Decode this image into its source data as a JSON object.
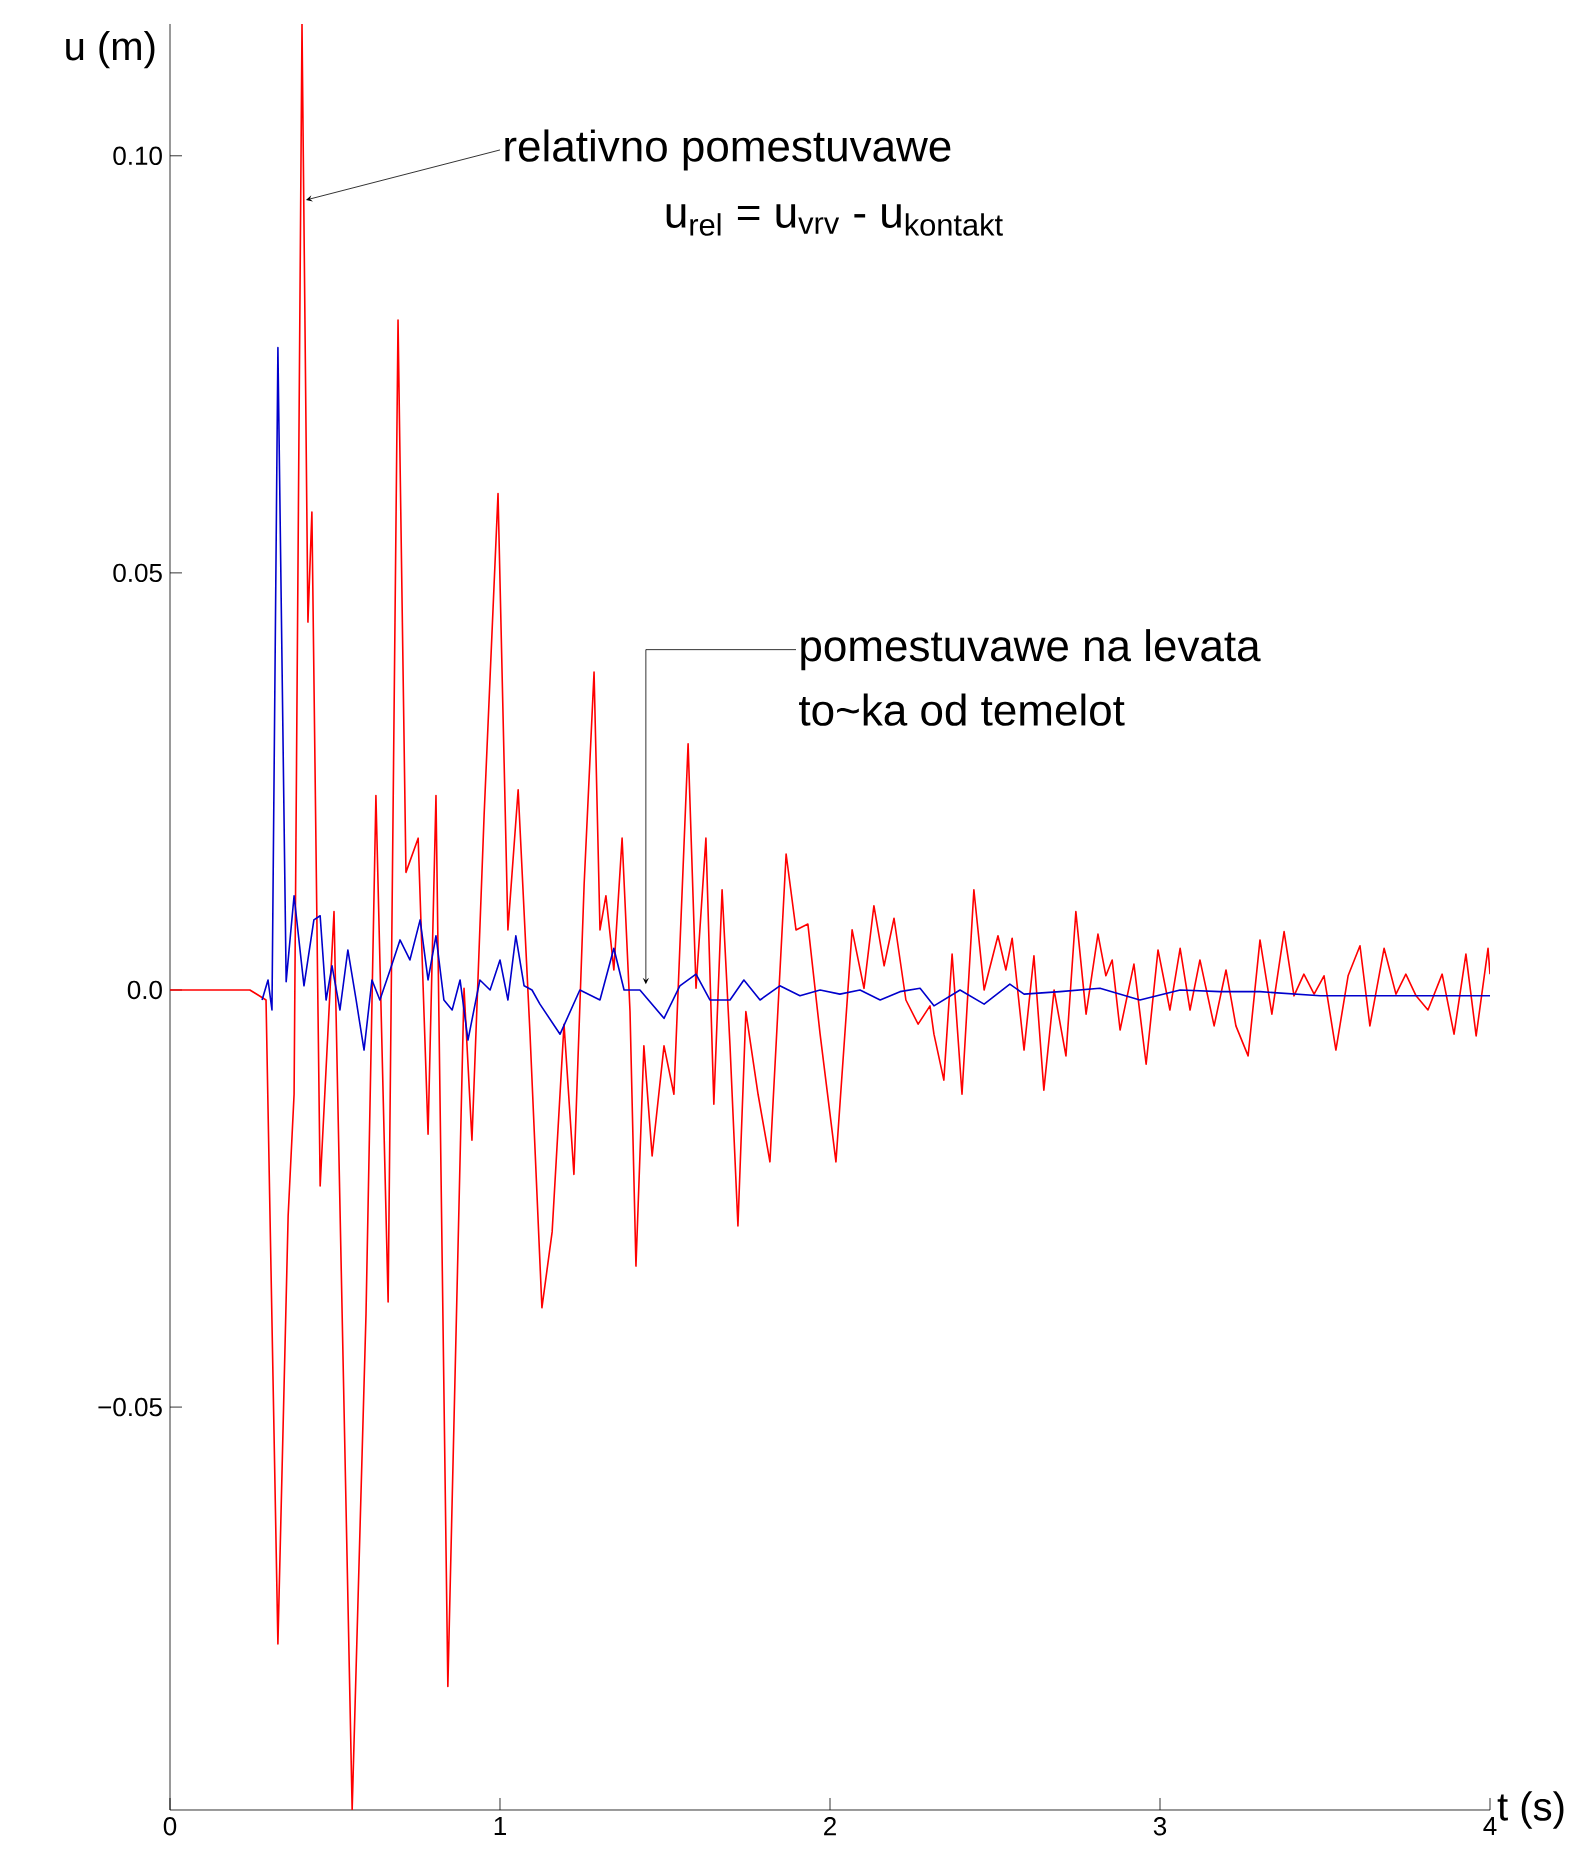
{
  "chart_data": {
    "type": "line",
    "xlabel": "t (s)",
    "ylabel": "u (m)",
    "xlim": [
      0,
      4
    ],
    "ylim": [
      -0.0983,
      0.1158
    ],
    "xticks": [
      0,
      1,
      2,
      3,
      4
    ],
    "yticks": [
      {
        "value": -0.05,
        "label": "−0.05"
      },
      {
        "value": 0,
        "label": "0.0"
      },
      {
        "value": 0.05,
        "label": "0.05"
      },
      {
        "value": 0.1,
        "label": "0.10"
      }
    ],
    "grid": false,
    "annotations": [
      {
        "text": "relativno pomestuvawe",
        "x": 0.412,
        "y": 0.0947
      },
      "u$_{rel}$ = u$_{vrv}$ - u$_{kontakt}$",
      {
        "text": "pomestuvawe na levata",
        "x": 1.442,
        "y": 0.0007
      },
      "to~ka od temelot"
    ],
    "series": [
      {
        "color": "#ff0000",
        "x": [
          0,
          0.242,
          0.291,
          0.327,
          0.358,
          0.376,
          0.4,
          0.418,
          0.43,
          0.455,
          0.497,
          0.552,
          0.594,
          0.624,
          0.661,
          0.691,
          0.715,
          0.752,
          0.782,
          0.806,
          0.842,
          0.891,
          0.915,
          0.952,
          0.994,
          1.024,
          1.055,
          1.091,
          1.127,
          1.158,
          1.194,
          1.224,
          1.255,
          1.285,
          1.303,
          1.321,
          1.345,
          1.37,
          1.394,
          1.412,
          1.436,
          1.461,
          1.497,
          1.527,
          1.57,
          1.594,
          1.624,
          1.648,
          1.673,
          1.697,
          1.721,
          1.745,
          1.782,
          1.818,
          1.867,
          1.897,
          1.933,
          1.97,
          2.018,
          2.067,
          2.103,
          2.133,
          2.164,
          2.194,
          2.23,
          2.267,
          2.303,
          2.315,
          2.345,
          2.37,
          2.4,
          2.436,
          2.467,
          2.509,
          2.533,
          2.552,
          2.588,
          2.618,
          2.648,
          2.679,
          2.715,
          2.745,
          2.776,
          2.812,
          2.836,
          2.855,
          2.879,
          2.921,
          2.958,
          2.994,
          3.03,
          3.061,
          3.091,
          3.121,
          3.164,
          3.2,
          3.23,
          3.267,
          3.303,
          3.339,
          3.376,
          3.406,
          3.436,
          3.467,
          3.497,
          3.533,
          3.57,
          3.606,
          3.636,
          3.679,
          3.715,
          3.745,
          3.776,
          3.812,
          3.855,
          3.891,
          3.927,
          3.958,
          3.994,
          4.0
        ],
        "values": [
          0,
          0,
          -0.0012,
          -0.0784,
          -0.0271,
          -0.0125,
          0.1158,
          0.0441,
          0.0573,
          -0.0235,
          0.0094,
          -0.0983,
          -0.0388,
          0.0233,
          -0.0374,
          0.0803,
          0.0141,
          0.0182,
          -0.0173,
          0.0233,
          -0.0835,
          0.0002,
          -0.018,
          0.0211,
          0.0595,
          0.0072,
          0.024,
          -0.0053,
          -0.0381,
          -0.029,
          -0.0041,
          -0.0221,
          0.0127,
          0.0381,
          0.0072,
          0.0113,
          0.0024,
          0.0182,
          -0.0026,
          -0.0331,
          -0.0067,
          -0.0199,
          -0.0067,
          -0.0125,
          0.0295,
          0.0002,
          0.0182,
          -0.0137,
          0.012,
          -0.0067,
          -0.0283,
          -0.0026,
          -0.0125,
          -0.0206,
          0.0163,
          0.0072,
          0.0079,
          -0.0053,
          -0.0206,
          0.0072,
          0.0002,
          0.0101,
          0.0029,
          0.0086,
          -0.0012,
          -0.0041,
          -0.0019,
          -0.0053,
          -0.0108,
          0.0043,
          -0.0125,
          0.012,
          0,
          0.0065,
          0.0024,
          0.0062,
          -0.0072,
          0.0041,
          -0.012,
          0,
          -0.0079,
          0.0094,
          -0.0029,
          0.0067,
          0.0017,
          0.0036,
          -0.0048,
          0.0031,
          -0.0089,
          0.0048,
          -0.0024,
          0.005,
          -0.0024,
          0.0036,
          -0.0043,
          0.0024,
          -0.0043,
          -0.0079,
          0.006,
          -0.0029,
          0.007,
          -0.0007,
          0.0019,
          -0.0005,
          0.0017,
          -0.0072,
          0.0017,
          0.0053,
          -0.0043,
          0.005,
          -0.0005,
          0.0019,
          -0.0007,
          -0.0024,
          0.0019,
          -0.0053,
          0.0043,
          -0.0055,
          0.005,
          0.0019
        ]
      },
      {
        "color": "#0000cc",
        "x": [
          0.279,
          0.297,
          0.309,
          0.327,
          0.352,
          0.376,
          0.406,
          0.436,
          0.455,
          0.473,
          0.491,
          0.515,
          0.539,
          0.564,
          0.588,
          0.612,
          0.636,
          0.667,
          0.697,
          0.727,
          0.758,
          0.782,
          0.806,
          0.83,
          0.855,
          0.879,
          0.903,
          0.939,
          0.97,
          1.0,
          1.024,
          1.048,
          1.073,
          1.097,
          1.121,
          1.182,
          1.242,
          1.303,
          1.345,
          1.376,
          1.424,
          1.497,
          1.545,
          1.594,
          1.636,
          1.697,
          1.739,
          1.788,
          1.848,
          1.909,
          1.97,
          2.03,
          2.091,
          2.152,
          2.212,
          2.273,
          2.315,
          2.394,
          2.467,
          2.545,
          2.588,
          2.697,
          2.818,
          2.939,
          3.061,
          3.182,
          3.303,
          3.485,
          3.727,
          4.0
        ],
        "values": [
          -0.0012,
          0.0012,
          -0.0024,
          0.077,
          0.001,
          0.0113,
          0.0005,
          0.0084,
          0.0089,
          -0.0012,
          0.0029,
          -0.0024,
          0.0048,
          -0.0012,
          -0.0072,
          0.0012,
          -0.0012,
          0.0024,
          0.006,
          0.0036,
          0.0084,
          0.0012,
          0.0065,
          -0.0012,
          -0.0024,
          0.0012,
          -0.006,
          0.0012,
          0,
          0.0036,
          -0.0012,
          0.0065,
          0.0005,
          0,
          -0.0017,
          -0.0053,
          0,
          -0.0012,
          0.005,
          0,
          0,
          -0.0034,
          0.0005,
          0.0019,
          -0.0012,
          -0.0012,
          0.0012,
          -0.0012,
          0.0005,
          -0.0007,
          0,
          -0.0005,
          0,
          -0.0012,
          -0.0002,
          0.0002,
          -0.0019,
          0,
          -0.0017,
          0.0007,
          -0.0005,
          -0.0002,
          0.0002,
          -0.0012,
          0,
          -0.0002,
          -0.0002,
          -0.0007,
          -0.0007,
          -0.0007
        ]
      }
    ]
  }
}
